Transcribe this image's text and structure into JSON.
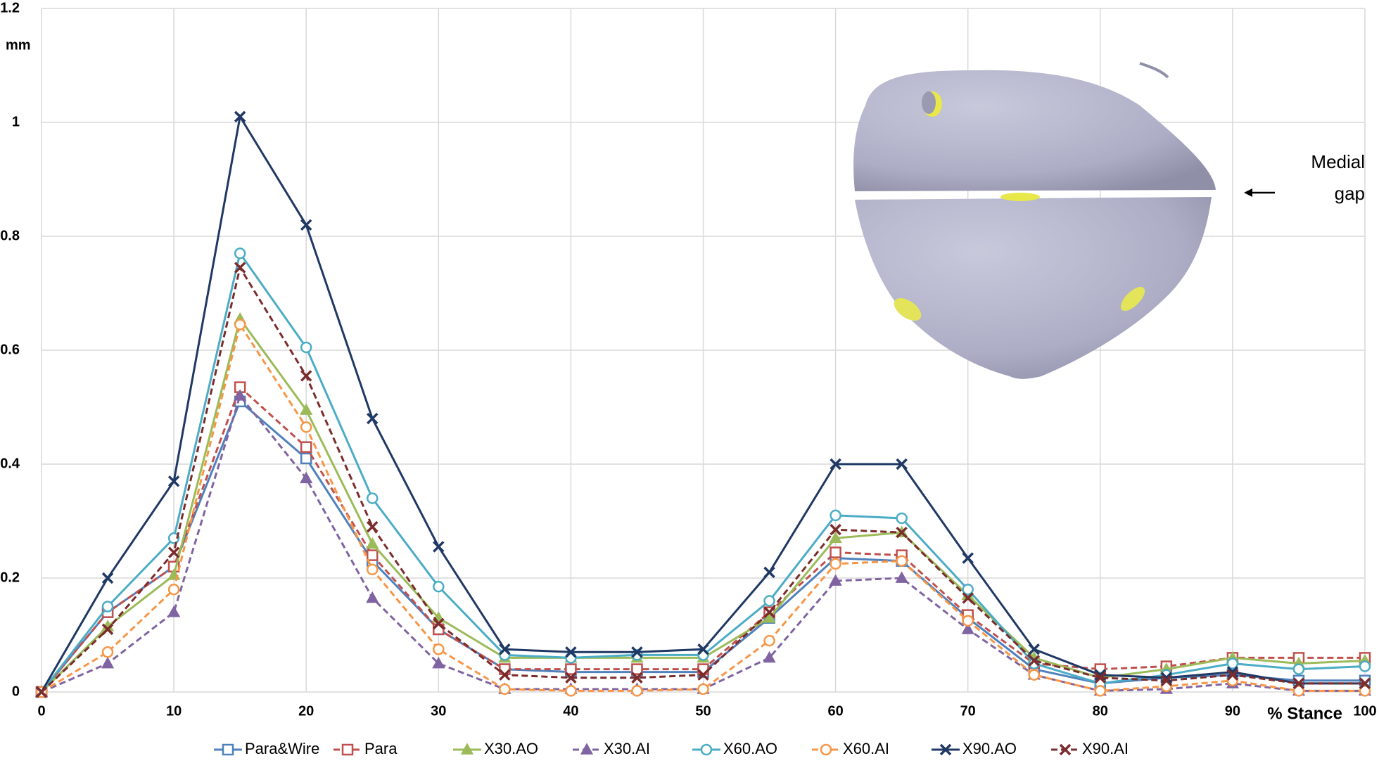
{
  "chart_data": {
    "type": "line",
    "y_label": "mm",
    "x_label": "% Stance",
    "annotation": [
      "Medial",
      "gap"
    ],
    "x": [
      0,
      5,
      10,
      15,
      20,
      25,
      30,
      35,
      40,
      45,
      50,
      55,
      60,
      65,
      70,
      75,
      80,
      85,
      90,
      95,
      100
    ],
    "xlim": [
      0,
      100
    ],
    "xticks": [
      0,
      10,
      20,
      30,
      40,
      50,
      60,
      70,
      80,
      90,
      100
    ],
    "ylim": [
      0,
      1.2
    ],
    "yticks": [
      0,
      0.2,
      0.4,
      0.6,
      0.8,
      1,
      1.2
    ],
    "grid": true,
    "series": [
      {
        "name": "Para&Wire",
        "color": "#4f81bd",
        "dashed": false,
        "marker": "square",
        "values": [
          0,
          0.14,
          0.22,
          0.51,
          0.41,
          0.23,
          0.11,
          0.04,
          0.035,
          0.035,
          0.035,
          0.13,
          0.235,
          0.23,
          0.13,
          0.04,
          0.015,
          0.025,
          0.03,
          0.02,
          0.02
        ]
      },
      {
        "name": "Para",
        "color": "#c0504d",
        "dashed": true,
        "marker": "square",
        "values": [
          0,
          0.14,
          0.22,
          0.535,
          0.43,
          0.24,
          0.11,
          0.04,
          0.04,
          0.04,
          0.04,
          0.14,
          0.245,
          0.24,
          0.135,
          0.05,
          0.04,
          0.045,
          0.06,
          0.06,
          0.06
        ]
      },
      {
        "name": "X30.AO",
        "color": "#9bbb59",
        "dashed": false,
        "marker": "triangle",
        "values": [
          0,
          0.115,
          0.205,
          0.655,
          0.495,
          0.26,
          0.13,
          0.06,
          0.06,
          0.06,
          0.06,
          0.13,
          0.27,
          0.28,
          0.17,
          0.06,
          0.025,
          0.04,
          0.06,
          0.05,
          0.055
        ]
      },
      {
        "name": "X30.AI",
        "color": "#8064a2",
        "dashed": true,
        "marker": "triangle",
        "values": [
          0,
          0.05,
          0.14,
          0.52,
          0.375,
          0.165,
          0.05,
          0.005,
          0.005,
          0.005,
          0.005,
          0.06,
          0.195,
          0.2,
          0.11,
          0.03,
          0.002,
          0.005,
          0.015,
          0.002,
          0.002
        ]
      },
      {
        "name": "X60.AO",
        "color": "#4bacc6",
        "dashed": false,
        "marker": "circle",
        "values": [
          0,
          0.15,
          0.27,
          0.77,
          0.605,
          0.34,
          0.185,
          0.065,
          0.06,
          0.065,
          0.065,
          0.16,
          0.31,
          0.305,
          0.18,
          0.05,
          0.015,
          0.03,
          0.05,
          0.04,
          0.045
        ]
      },
      {
        "name": "X60.AI",
        "color": "#f79646",
        "dashed": true,
        "marker": "circle",
        "values": [
          0,
          0.07,
          0.18,
          0.645,
          0.465,
          0.215,
          0.075,
          0.005,
          0.002,
          0.002,
          0.005,
          0.09,
          0.225,
          0.23,
          0.125,
          0.03,
          0.002,
          0.01,
          0.02,
          0.002,
          0.002
        ]
      },
      {
        "name": "X90.AO",
        "color": "#1f3864",
        "dashed": false,
        "marker": "x",
        "values": [
          0,
          0.2,
          0.37,
          1.01,
          0.82,
          0.48,
          0.255,
          0.075,
          0.07,
          0.07,
          0.075,
          0.21,
          0.4,
          0.4,
          0.235,
          0.075,
          0.03,
          0.025,
          0.035,
          0.015,
          0.015
        ]
      },
      {
        "name": "X90.AI",
        "color": "#7b2c2c",
        "dashed": true,
        "marker": "x",
        "values": [
          0,
          0.11,
          0.245,
          0.745,
          0.555,
          0.29,
          0.12,
          0.03,
          0.025,
          0.025,
          0.03,
          0.14,
          0.285,
          0.28,
          0.165,
          0.055,
          0.025,
          0.02,
          0.03,
          0.015,
          0.015
        ]
      }
    ]
  }
}
